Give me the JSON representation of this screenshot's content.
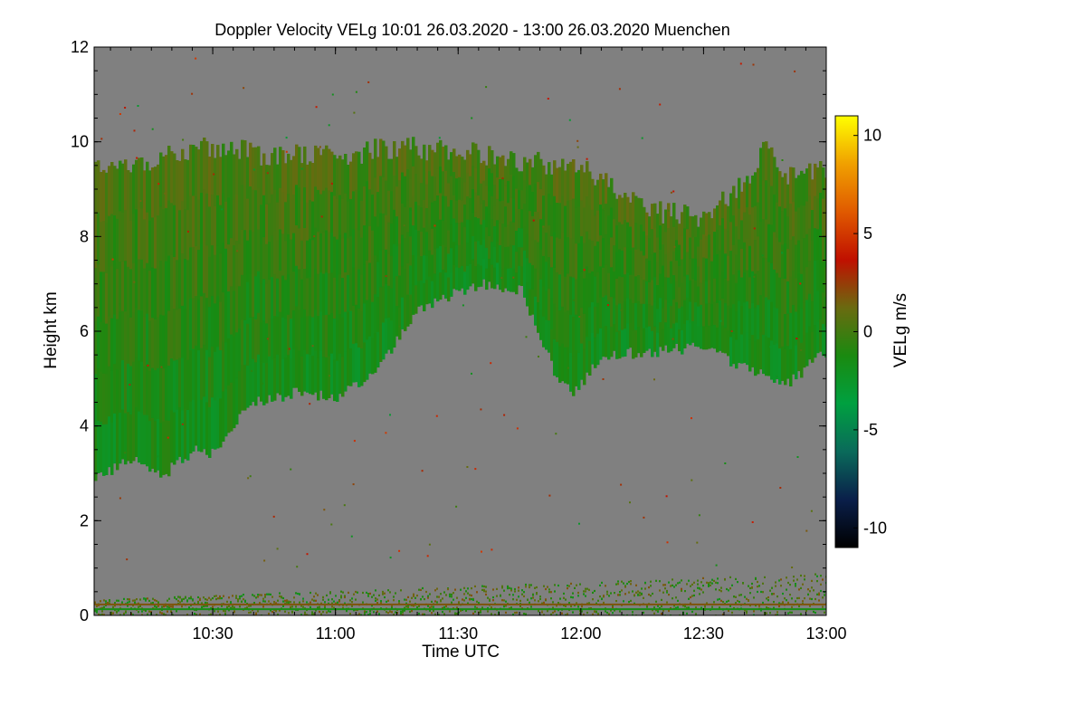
{
  "chart_data": {
    "type": "heatmap",
    "title": "Doppler Velocity VELg   10:01 26.03.2020 - 13:00 26.03.2020 Muenchen",
    "xlabel": "Time UTC",
    "ylabel": "Height km",
    "colorbar_label": "VELg m/s",
    "xlim": [
      "10:01",
      "13:00"
    ],
    "ylim": [
      0,
      12
    ],
    "clim": [
      -11,
      11
    ],
    "x_ticks": [
      "10:30",
      "11:00",
      "11:30",
      "12:00",
      "12:30",
      "13:00"
    ],
    "y_ticks": [
      0,
      2,
      4,
      6,
      8,
      10,
      12
    ],
    "colorbar_ticks": [
      10,
      5,
      0,
      -5,
      -10
    ],
    "background_color": "#808080",
    "colormap": [
      "#000000",
      "#0a1f4a",
      "#0a6a5a",
      "#00a040",
      "#1a8a10",
      "#6a6a10",
      "#c01000",
      "#e05a00",
      "#f0a000",
      "#ffff00"
    ],
    "cloud_layer": {
      "description_top_km": [
        [
          "10:01",
          9.5
        ],
        [
          "10:15",
          9.6
        ],
        [
          "10:30",
          9.9
        ],
        [
          "10:45",
          9.7
        ],
        [
          "11:00",
          9.7
        ],
        [
          "11:15",
          9.9
        ],
        [
          "11:30",
          9.8
        ],
        [
          "11:45",
          9.6
        ],
        [
          "12:00",
          9.4
        ],
        [
          "12:10",
          8.9
        ],
        [
          "12:20",
          8.5
        ],
        [
          "12:30",
          8.4
        ],
        [
          "12:40",
          9.2
        ],
        [
          "12:45",
          9.9
        ],
        [
          "12:50",
          9.3
        ],
        [
          "13:00",
          9.5
        ]
      ],
      "base_km": [
        [
          "10:01",
          2.9
        ],
        [
          "10:10",
          3.3
        ],
        [
          "10:18",
          3.0
        ],
        [
          "10:25",
          3.5
        ],
        [
          "10:30",
          3.4
        ],
        [
          "10:38",
          4.5
        ],
        [
          "10:50",
          4.7
        ],
        [
          "11:00",
          4.6
        ],
        [
          "11:10",
          5.2
        ],
        [
          "11:20",
          6.5
        ],
        [
          "11:35",
          7.0
        ],
        [
          "11:45",
          6.9
        ],
        [
          "11:53",
          5.2
        ],
        [
          "11:58",
          4.7
        ],
        [
          "12:05",
          5.5
        ],
        [
          "12:20",
          5.6
        ],
        [
          "12:30",
          5.7
        ],
        [
          "12:40",
          5.2
        ],
        [
          "12:50",
          4.9
        ],
        [
          "13:00",
          5.6
        ]
      ],
      "mean_velocity_ms": -1.5
    },
    "near_surface_layer": {
      "top_km": 0.9,
      "mixed_velocity_ms": [
        -2,
        2
      ]
    }
  }
}
